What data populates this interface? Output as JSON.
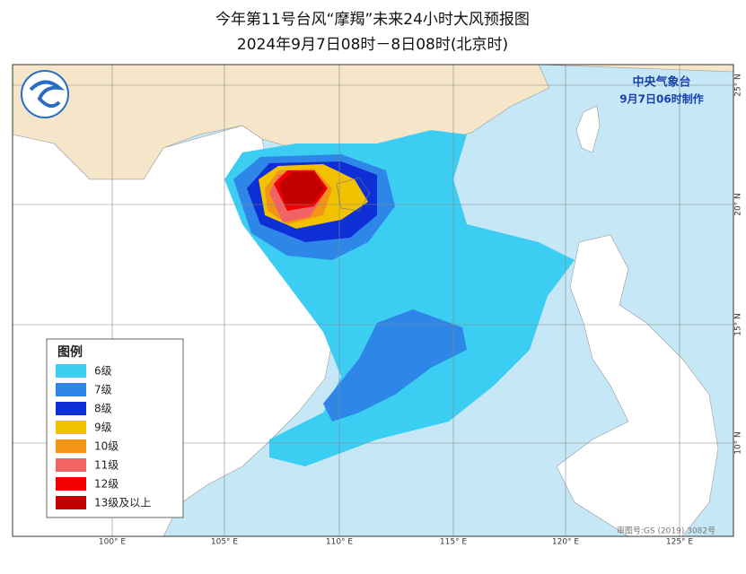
{
  "title": {
    "line1": "今年第11号台风“摩羯”未来24小时大风预报图",
    "line2": "2024年9月7日08时－8日08时(北京时)"
  },
  "issuer": {
    "agency": "中央气象台",
    "time": "9月7日06时制作"
  },
  "legend": {
    "title": "图例",
    "items": [
      {
        "label": "6级",
        "color": "#3ccdf2"
      },
      {
        "label": "7级",
        "color": "#2e86e8"
      },
      {
        "label": "8级",
        "color": "#0f2fd6"
      },
      {
        "label": "9级",
        "color": "#f2c200"
      },
      {
        "label": "10级",
        "color": "#f29416"
      },
      {
        "label": "11级",
        "color": "#f26464"
      },
      {
        "label": "12级",
        "color": "#f20000"
      },
      {
        "label": "13级及以上",
        "color": "#c20000"
      }
    ]
  },
  "axes": {
    "longitude": [
      "100° E",
      "105° E",
      "110° E",
      "115° E",
      "120° E",
      "125° E"
    ],
    "latitude": [
      "25° N",
      "20° N",
      "15° N",
      "10° N"
    ]
  },
  "map_number": "审图号:GS (2019) 3082号"
}
